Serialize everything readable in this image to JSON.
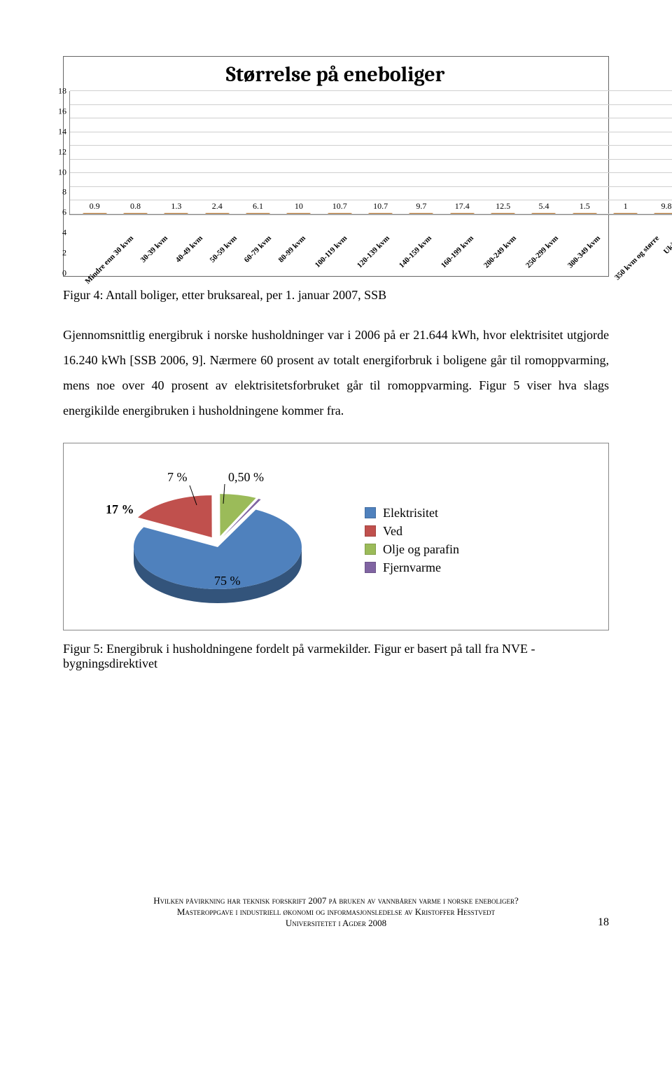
{
  "bar_chart": {
    "type": "bar",
    "title": "Størrelse på eneboliger",
    "title_fontsize": 30,
    "ylim": [
      0,
      18
    ],
    "ytick_step": 2,
    "yticks": [
      0,
      2,
      4,
      6,
      8,
      10,
      12,
      14,
      16,
      18
    ],
    "grid_color": "#cfcfcf",
    "axis_color": "#888888",
    "background_color": "#ffffff",
    "bar_fill": "#f2a549",
    "bar_border": "#b06a1f",
    "bar_width": 0.6,
    "label_fontsize": 12,
    "categories": [
      "Mindre enn 30 kvm",
      "30-39 kvm",
      "40-49 kvm",
      "50-59 kvm",
      "60-79 kvm",
      "80-99 kvm",
      "100-119 kvm",
      "120-139 kvm",
      "140-159 kvm",
      "160-199 kvm",
      "200-249 kvm",
      "250-299 kvm",
      "300-349 kvm",
      "350 kvm og større",
      "Ukjent"
    ],
    "values": [
      0.9,
      0.8,
      1.3,
      2.4,
      6.1,
      10,
      10.7,
      10.7,
      9.7,
      17.4,
      12.5,
      5.4,
      1.5,
      1,
      9.8
    ],
    "value_labels": [
      "0.9",
      "0.8",
      "1.3",
      "2.4",
      "6.1",
      "10",
      "10.7",
      "10.7",
      "9.7",
      "17.4",
      "12.5",
      "5.4",
      "1.5",
      "1",
      "9.8"
    ]
  },
  "caption_bar": "Figur 4: Antall boliger, etter bruksareal, per 1. januar 2007, SSB",
  "paragraph": "Gjennomsnittlig energibruk i norske husholdninger var i 2006 på er 21.644 kWh, hvor elektrisitet utgjorde 16.240 kWh [SSB 2006, 9]. Nærmere 60 prosent av totalt energiforbruk i boligene går til romoppvarming, mens noe over 40 prosent av elektrisitetsforbruket går til romoppvarming. Figur 5 viser hva slags energikilde energibruken i husholdningene kommer fra.",
  "pie_chart": {
    "type": "pie_3d_exploded",
    "slices": [
      {
        "label": "Elektrisitet",
        "pct": 75,
        "pct_label": "75 %",
        "color": "#4f81bd"
      },
      {
        "label": "Ved",
        "pct": 17,
        "pct_label": "17 %",
        "color": "#c0504d"
      },
      {
        "label": "Olje og parafin",
        "pct": 7,
        "pct_label": "7 %",
        "color": "#9bbb59"
      },
      {
        "label": "Fjernvarme",
        "pct": 0.5,
        "pct_label": "0,50 %",
        "color": "#8064a2"
      }
    ],
    "legend_fontsize": 18,
    "label_fontsize": 18,
    "background_color": "#ffffff"
  },
  "caption_pie": "Figur 5: Energibruk i husholdningene fordelt på varmekilder. Figur er basert på tall fra NVE - bygningsdirektivet",
  "footer": {
    "line1": "Hvilken påvirkning har teknisk forskrift 2007 på bruken av vannbåren varme i norske eneboliger?",
    "line2": "Masteroppgave i industriell økonomi og informasjonsledelse av Kristoffer Hesstvedt",
    "line3": "Universitetet i Agder 2008",
    "page_number": "18"
  }
}
